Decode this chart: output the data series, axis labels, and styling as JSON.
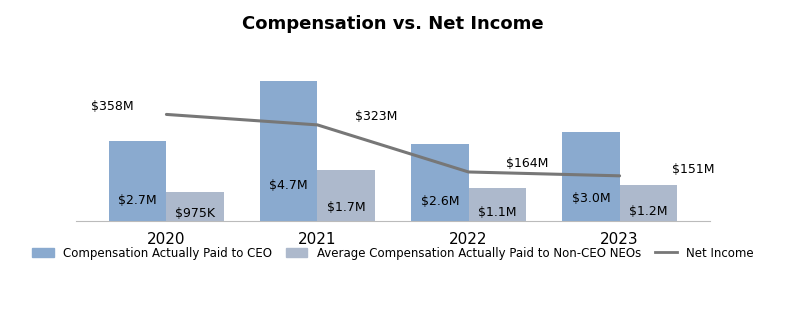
{
  "title": "Compensation vs. Net Income",
  "years": [
    2020,
    2021,
    2022,
    2023
  ],
  "ceo_comp": [
    2.7,
    4.7,
    2.6,
    3.0
  ],
  "neo_comp": [
    0.975,
    1.7,
    1.1,
    1.2
  ],
  "net_income_scaled": [
    3.584,
    3.23,
    1.64,
    1.51
  ],
  "ceo_labels": [
    "$2.7M",
    "$4.7M",
    "$2.6M",
    "$3.0M"
  ],
  "neo_labels": [
    "$975K",
    "$1.7M",
    "$1.1M",
    "$1.2M"
  ],
  "net_income_labels": [
    "$358M",
    "$323M",
    "$164M",
    "$151M"
  ],
  "net_income_label_xoff": [
    -0.5,
    0.25,
    0.25,
    0.35
  ],
  "net_income_label_yoff": [
    0.05,
    0.08,
    0.08,
    0.0
  ],
  "net_income_label_ha": [
    "left",
    "left",
    "left",
    "left"
  ],
  "ceo_color": "#8aaacf",
  "neo_color": "#adb9cc",
  "line_color": "#777777",
  "bar_width": 0.38,
  "background_color": "#ffffff",
  "ylim": [
    0,
    6.0
  ],
  "legend_ceo": "Compensation Actually Paid to CEO",
  "legend_neo": "Average Compensation Actually Paid to Non-CEO NEOs",
  "legend_line": "Net Income",
  "title_fontsize": 13,
  "label_fontsize": 9,
  "tick_fontsize": 11
}
